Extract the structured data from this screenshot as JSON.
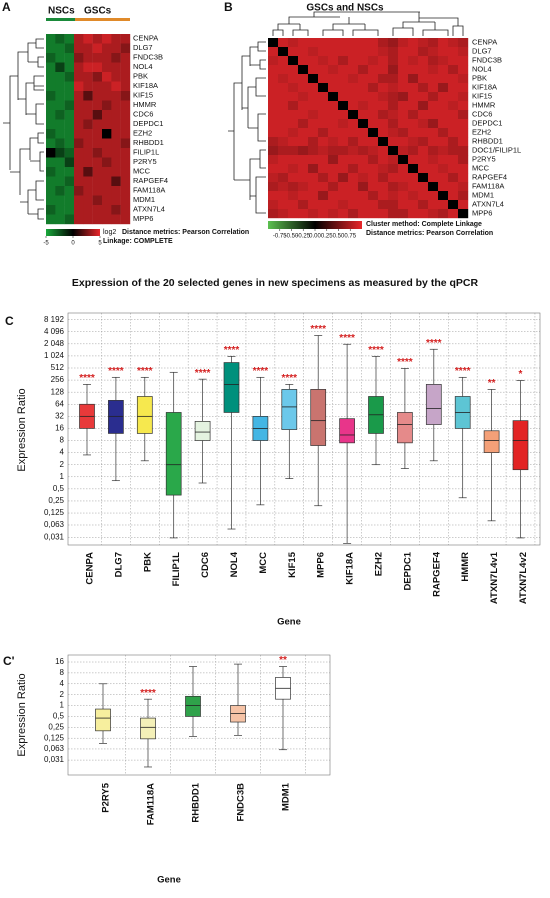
{
  "chart_data": [
    {
      "type": "heatmap",
      "panel": "A",
      "column_groups": [
        "NSCs",
        "GSCs"
      ],
      "rows": [
        "CENPA",
        "DLG7",
        "FNDC3B",
        "NOL4",
        "PBK",
        "KIF18A",
        "KIF15",
        "HMMR",
        "CDC6",
        "DEPDC1",
        "EZH2",
        "RHBDD1",
        "FILIP1L",
        "P2RY5",
        "MCC",
        "RAPGEF4",
        "FAM118A",
        "MDM1",
        "ATXN7L4",
        "MPP6"
      ],
      "values": [
        [
          -3,
          -2,
          -3,
          3,
          4,
          3,
          4,
          3,
          3
        ],
        [
          -3,
          -3,
          -2,
          3,
          3,
          4,
          3,
          3,
          2
        ],
        [
          -2,
          -3,
          -3,
          2,
          3,
          3,
          3,
          2,
          3
        ],
        [
          -3,
          -1,
          -3,
          3,
          4,
          4,
          3,
          3,
          3
        ],
        [
          -3,
          -3,
          -2,
          3,
          3,
          2,
          4,
          3,
          3
        ],
        [
          -3,
          -3,
          -3,
          4,
          3,
          3,
          3,
          4,
          3
        ],
        [
          -2,
          -3,
          -3,
          3,
          1,
          3,
          3,
          3,
          2
        ],
        [
          -3,
          -3,
          -2,
          3,
          3,
          3,
          2,
          3,
          3
        ],
        [
          -3,
          -2,
          -3,
          3,
          3,
          1,
          3,
          3,
          3
        ],
        [
          -3,
          -3,
          -3,
          3,
          2,
          3,
          3,
          3,
          3
        ],
        [
          -2,
          -3,
          -3,
          3,
          3,
          3,
          0,
          3,
          3
        ],
        [
          -3,
          -2,
          -3,
          2,
          3,
          3,
          3,
          3,
          2
        ],
        [
          0,
          -1,
          -2,
          3,
          3,
          2,
          3,
          3,
          3
        ],
        [
          -3,
          -3,
          -1,
          3,
          3,
          3,
          2,
          3,
          3
        ],
        [
          -2,
          -3,
          -3,
          3,
          1,
          3,
          3,
          3,
          3
        ],
        [
          -3,
          -3,
          -2,
          3,
          3,
          3,
          3,
          1,
          3
        ],
        [
          -3,
          -2,
          -3,
          2,
          3,
          3,
          3,
          3,
          3
        ],
        [
          -3,
          -3,
          -3,
          3,
          3,
          2,
          3,
          3,
          3
        ],
        [
          -2,
          -3,
          -3,
          3,
          3,
          3,
          3,
          2,
          3
        ],
        [
          -3,
          -3,
          -2,
          3,
          3,
          3,
          3,
          3,
          3
        ]
      ],
      "clim": [
        -5,
        5
      ],
      "colorbar_ticks": [
        -5,
        0,
        5
      ],
      "colorbar_label": "log2",
      "notes": [
        "Distance metrics: Pearson Correlation",
        "Linkage: COMPLETE"
      ]
    },
    {
      "type": "heatmap",
      "panel": "B",
      "title": "GSCs and NSCs",
      "rows": [
        "CENPA",
        "DLG7",
        "FNDC3B",
        "NOL4",
        "PBK",
        "KIF18A",
        "KIF15",
        "HMMR",
        "CDC6",
        "DEPDC1",
        "EZH2",
        "RHBDD1",
        "DOC1/FILIP1L",
        "P2RY5",
        "MCC",
        "RAPGEF4",
        "FAM118A",
        "MDM1",
        "ATXN7L4",
        "MPP6"
      ],
      "values": [
        [
          0,
          0.8,
          0.7,
          0.8,
          0.8,
          0.8,
          0.8,
          0.8,
          0.8,
          0.8,
          0.8,
          0.6,
          0.5,
          0.7,
          0.8,
          0.7,
          0.6,
          0.8,
          0.7,
          0.6
        ],
        [
          0.8,
          0,
          0.8,
          0.8,
          0.7,
          0.8,
          0.8,
          0.8,
          0.8,
          0.8,
          0.8,
          0.7,
          0.6,
          0.8,
          0.8,
          0.6,
          0.7,
          0.8,
          0.8,
          0.7
        ],
        [
          0.7,
          0.8,
          0,
          0.8,
          0.8,
          0.7,
          0.8,
          0.6,
          0.8,
          0.8,
          0.7,
          0.8,
          0.6,
          0.8,
          0.7,
          0.8,
          0.6,
          0.7,
          0.8,
          0.8
        ],
        [
          0.8,
          0.8,
          0.8,
          0,
          0.8,
          0.8,
          0.7,
          0.8,
          0.8,
          0.6,
          0.8,
          0.8,
          0.5,
          0.8,
          0.8,
          0.8,
          0.7,
          0.8,
          0.6,
          0.8
        ],
        [
          0.8,
          0.7,
          0.8,
          0.8,
          0,
          0.8,
          0.8,
          0.8,
          0.7,
          0.8,
          0.8,
          0.6,
          0.6,
          0.8,
          0.5,
          0.8,
          0.8,
          0.8,
          0.8,
          0.7
        ],
        [
          0.8,
          0.8,
          0.7,
          0.8,
          0.8,
          0,
          0.8,
          0.8,
          0.8,
          0.8,
          0.6,
          0.8,
          0.7,
          0.8,
          0.8,
          0.6,
          0.8,
          0.5,
          0.8,
          0.8
        ],
        [
          0.8,
          0.8,
          0.8,
          0.7,
          0.8,
          0.8,
          0,
          0.8,
          0.8,
          0.8,
          0.8,
          0.7,
          0.6,
          0.5,
          0.8,
          0.8,
          0.6,
          0.8,
          0.8,
          0.7
        ],
        [
          0.8,
          0.8,
          0.6,
          0.8,
          0.8,
          0.8,
          0.8,
          0,
          0.8,
          0.7,
          0.8,
          0.8,
          0.6,
          0.8,
          0.8,
          0.5,
          0.8,
          0.8,
          0.7,
          0.8
        ],
        [
          0.8,
          0.8,
          0.8,
          0.8,
          0.7,
          0.8,
          0.8,
          0.8,
          0,
          0.8,
          0.8,
          0.6,
          0.7,
          0.8,
          0.6,
          0.8,
          0.8,
          0.8,
          0.8,
          0.6
        ],
        [
          0.8,
          0.8,
          0.8,
          0.6,
          0.8,
          0.8,
          0.8,
          0.7,
          0.8,
          0,
          0.8,
          0.8,
          0.6,
          0.8,
          0.8,
          0.7,
          0.5,
          0.8,
          0.8,
          0.8
        ],
        [
          0.8,
          0.8,
          0.7,
          0.8,
          0.8,
          0.6,
          0.8,
          0.8,
          0.8,
          0.8,
          0,
          0.8,
          0.7,
          0.6,
          0.8,
          0.8,
          0.8,
          0.6,
          0.8,
          0.8
        ],
        [
          0.6,
          0.7,
          0.8,
          0.8,
          0.6,
          0.8,
          0.7,
          0.8,
          0.6,
          0.8,
          0.8,
          0,
          0.8,
          0.8,
          0.7,
          0.6,
          0.8,
          0.8,
          0.6,
          0.8
        ],
        [
          0.5,
          0.6,
          0.6,
          0.5,
          0.6,
          0.7,
          0.6,
          0.6,
          0.7,
          0.6,
          0.7,
          0.8,
          0,
          0.7,
          0.6,
          0.8,
          0.6,
          0.7,
          0.6,
          0.6
        ],
        [
          0.7,
          0.8,
          0.8,
          0.8,
          0.8,
          0.8,
          0.5,
          0.8,
          0.8,
          0.8,
          0.6,
          0.8,
          0.7,
          0,
          0.8,
          0.8,
          0.7,
          0.8,
          0.8,
          0.6
        ],
        [
          0.8,
          0.8,
          0.7,
          0.8,
          0.5,
          0.8,
          0.8,
          0.8,
          0.6,
          0.8,
          0.8,
          0.7,
          0.6,
          0.8,
          0,
          0.8,
          0.8,
          0.7,
          0.8,
          0.8
        ],
        [
          0.7,
          0.6,
          0.8,
          0.8,
          0.8,
          0.6,
          0.8,
          0.5,
          0.8,
          0.7,
          0.8,
          0.6,
          0.8,
          0.8,
          0.8,
          0,
          0.8,
          0.8,
          0.6,
          0.8
        ],
        [
          0.6,
          0.7,
          0.6,
          0.7,
          0.8,
          0.8,
          0.6,
          0.8,
          0.8,
          0.5,
          0.8,
          0.8,
          0.6,
          0.7,
          0.8,
          0.8,
          0,
          0.8,
          0.8,
          0.7
        ],
        [
          0.8,
          0.8,
          0.7,
          0.8,
          0.8,
          0.5,
          0.8,
          0.8,
          0.8,
          0.8,
          0.6,
          0.8,
          0.7,
          0.8,
          0.7,
          0.8,
          0.8,
          0,
          0.8,
          0.6
        ],
        [
          0.7,
          0.8,
          0.8,
          0.6,
          0.8,
          0.8,
          0.8,
          0.7,
          0.8,
          0.8,
          0.8,
          0.6,
          0.6,
          0.8,
          0.8,
          0.6,
          0.8,
          0.8,
          0,
          0.8
        ],
        [
          0.6,
          0.7,
          0.8,
          0.8,
          0.7,
          0.8,
          0.7,
          0.8,
          0.6,
          0.8,
          0.8,
          0.8,
          0.6,
          0.6,
          0.8,
          0.8,
          0.7,
          0.6,
          0.8,
          0
        ]
      ],
      "clim": [
        -1,
        1
      ],
      "colorbar_ticks": [
        {
          "value": -0.75,
          "label": "-0.75"
        },
        {
          "value": -0.5,
          "label": "-0.50"
        },
        -0.25,
        {
          "value": 0,
          "label": "0.00"
        },
        0.25,
        {
          "value": 0.5,
          "label": "0.50"
        },
        0.75
      ],
      "notes": [
        "Cluster method: Complete Linkage",
        "Distance metrics: Pearson Correlation"
      ]
    },
    {
      "type": "box",
      "panel": "C",
      "title": "Expression of the 20 selected genes in new specimens as measured by the qPCR",
      "xlabel": "Gene",
      "ylabel": "Expression Ratio",
      "log_scale": true,
      "grid": true,
      "categories": [
        "CENPA",
        "DLG7",
        "PBK",
        "FILIP1L",
        "CDC6",
        "NOL4",
        "MCC",
        "KIF15",
        "MPP6",
        "KIF18A",
        "EZH2",
        "DEPDC1",
        "RAPGEF4",
        "HMMR",
        "ATXN7L4v1",
        "ATXN7L4v2"
      ],
      "low": [
        3.5,
        0.8,
        2.5,
        0.03,
        0.7,
        0.05,
        0.2,
        0.9,
        0.19,
        0.022,
        2,
        1.6,
        2.5,
        0.3,
        0.08,
        0.03
      ],
      "q1": [
        16,
        12,
        12,
        0.35,
        8,
        40,
        8,
        15,
        6,
        7,
        12,
        7,
        20,
        16,
        4,
        1.5
      ],
      "median": [
        32,
        32,
        32,
        2,
        13,
        200,
        16,
        55,
        25,
        11,
        35,
        20,
        50,
        40,
        8,
        8
      ],
      "q3": [
        64,
        80,
        100,
        40,
        24,
        700,
        32,
        150,
        150,
        28,
        100,
        40,
        200,
        100,
        14,
        25
      ],
      "high": [
        200,
        300,
        300,
        400,
        270,
        1000,
        300,
        200,
        3300,
        2000,
        1000,
        500,
        1500,
        300,
        150,
        250
      ],
      "colors": [
        "#e8393a",
        "#2a2d8f",
        "#f6e84e",
        "#2aa84a",
        "#e4f3e0",
        "#00907c",
        "#44b6e4",
        "#6cc8ea",
        "#c9746f",
        "#e8358a",
        "#1a9a4a",
        "#e58a8a",
        "#c6a5c8",
        "#5dc5d4",
        "#f4a078",
        "#e22424"
      ],
      "significance": [
        "****",
        "****",
        "****",
        null,
        "****",
        "****",
        "****",
        "****",
        "****",
        "****",
        "****",
        "****",
        "****",
        "****",
        "**",
        "*"
      ],
      "ylim": [
        0.02,
        12000
      ],
      "yticks": [
        {
          "value": 8192,
          "label": "8 192"
        },
        {
          "value": 4096,
          "label": "4 096"
        },
        {
          "value": 2048,
          "label": "2 048"
        },
        {
          "value": 1024,
          "label": "1 024"
        },
        512,
        256,
        128,
        64,
        32,
        16,
        8,
        4,
        2,
        1,
        {
          "value": 0.5,
          "label": "0,5"
        },
        {
          "value": 0.25,
          "label": "0,25"
        },
        {
          "value": 0.125,
          "label": "0,125"
        },
        {
          "value": 0.063,
          "label": "0,063"
        },
        {
          "value": 0.031,
          "label": "0,031"
        }
      ]
    },
    {
      "type": "box",
      "panel": "C'",
      "xlabel": "Gene",
      "ylabel": "Expression Ratio",
      "log_scale": true,
      "grid": true,
      "categories": [
        "P2RY5",
        "FAM118A",
        "RHBDD1",
        "FNDC3B",
        "MDM1"
      ],
      "low": [
        0.09,
        0.02,
        0.14,
        0.15,
        0.06
      ],
      "q1": [
        0.2,
        0.12,
        0.5,
        0.35,
        1.5
      ],
      "median": [
        0.45,
        0.25,
        1,
        0.6,
        3
      ],
      "q3": [
        0.8,
        0.45,
        1.8,
        1,
        6
      ],
      "high": [
        4,
        1.5,
        12,
        14,
        12
      ],
      "colors": [
        "#f7ef9e",
        "#f4f0b8",
        "#2fa24a",
        "#f6c3a6",
        "#ffffff"
      ],
      "significance": [
        null,
        "****",
        null,
        null,
        "**"
      ],
      "ylim": [
        0.012,
        25
      ],
      "yticks": [
        16,
        8,
        4,
        2,
        1,
        {
          "value": 0.5,
          "label": "0,5"
        },
        {
          "value": 0.25,
          "label": "0,25"
        },
        {
          "value": 0.125,
          "label": "0,125"
        },
        {
          "value": 0.063,
          "label": "0,063"
        },
        {
          "value": 0.031,
          "label": "0,031"
        }
      ]
    }
  ]
}
